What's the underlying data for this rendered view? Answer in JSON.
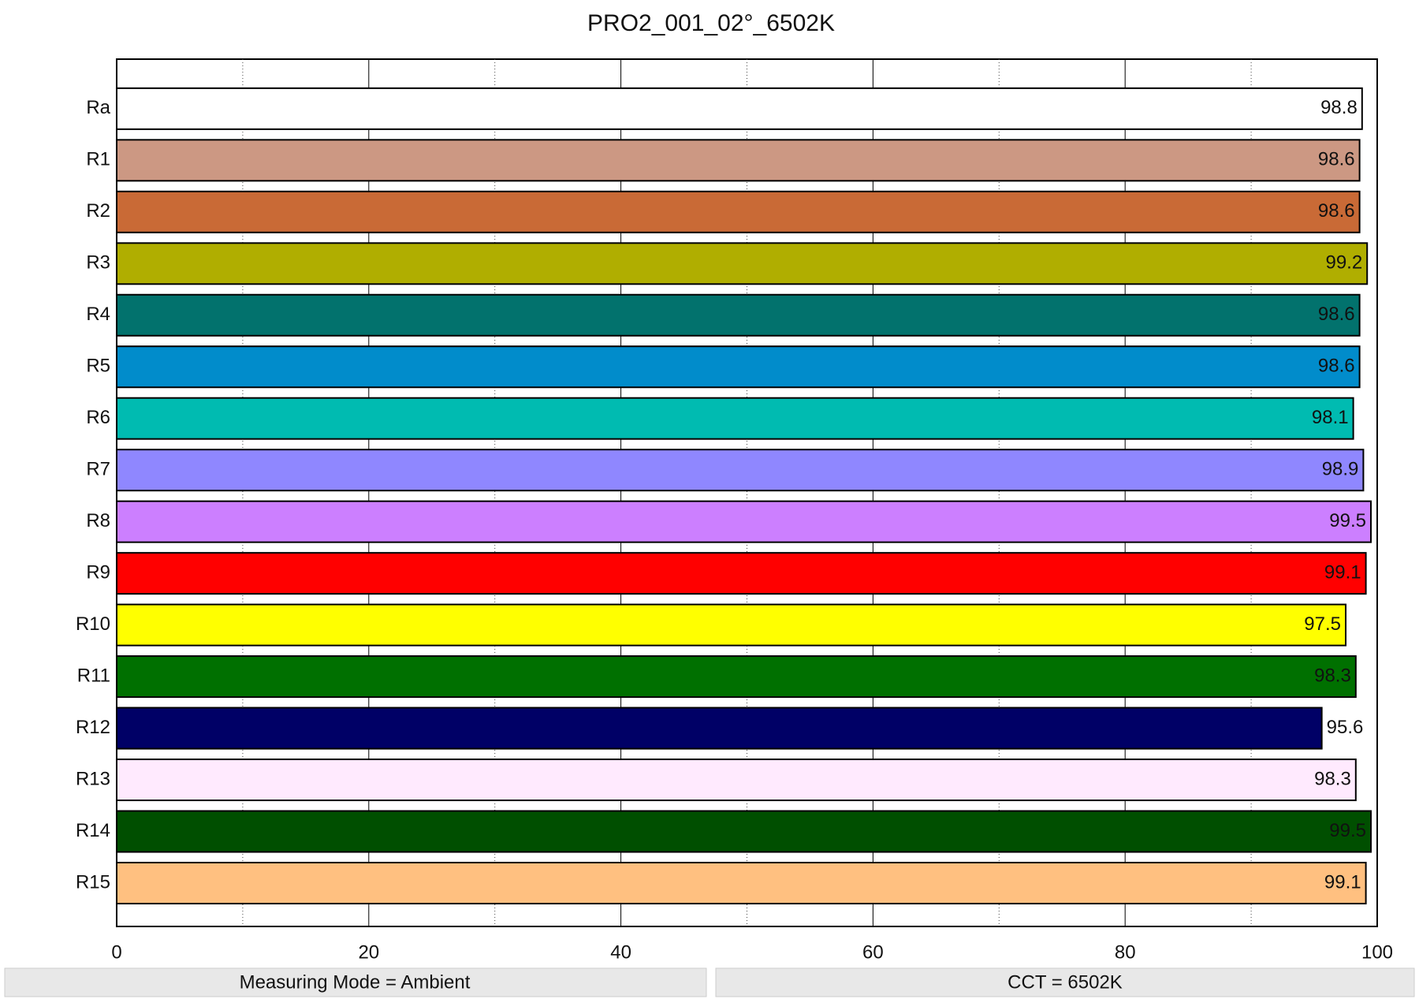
{
  "chart_data": {
    "type": "bar",
    "orientation": "horizontal",
    "title": "PRO2_001_02°_6502K",
    "categories": [
      "Ra",
      "R1",
      "R2",
      "R3",
      "R4",
      "R5",
      "R6",
      "R7",
      "R8",
      "R9",
      "R10",
      "R11",
      "R12",
      "R13",
      "R14",
      "R15"
    ],
    "values": [
      98.8,
      98.6,
      98.6,
      99.2,
      98.6,
      98.6,
      98.1,
      98.9,
      99.5,
      99.1,
      97.5,
      98.3,
      95.6,
      98.3,
      99.5,
      99.1
    ],
    "colors": [
      "#ffffff",
      "#cc9883",
      "#c96a36",
      "#b0ae00",
      "#02726d",
      "#018ccb",
      "#00bbb1",
      "#8f87ff",
      "#cc7fff",
      "#ff0000",
      "#ffff00",
      "#007000",
      "#000066",
      "#ffeafe",
      "#004f00",
      "#ffc080"
    ],
    "xlim": [
      0,
      100
    ],
    "xticks": [
      0,
      20,
      40,
      60,
      80,
      100
    ],
    "minor_xticks": [
      10,
      30,
      50,
      70,
      90
    ],
    "grid": true
  },
  "footer": [
    "Measuring Mode = Ambient",
    "CCT = 6502K"
  ]
}
